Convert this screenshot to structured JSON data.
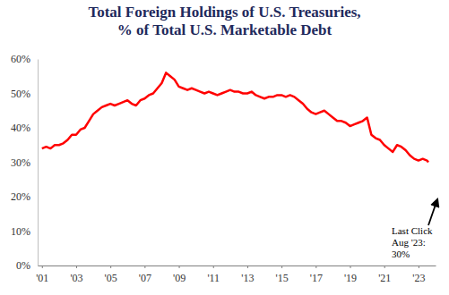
{
  "chart_data": {
    "type": "line",
    "title": [
      "Total Foreign Holdings of U.S. Treasuries,",
      "% of Total U.S. Marketable Debt"
    ],
    "x": [
      2001.0,
      2001.25,
      2001.5,
      2001.75,
      2002.0,
      2002.25,
      2002.5,
      2002.75,
      2003.0,
      2003.25,
      2003.5,
      2003.75,
      2004.0,
      2004.25,
      2004.5,
      2004.75,
      2005.0,
      2005.25,
      2005.5,
      2005.75,
      2006.0,
      2006.25,
      2006.5,
      2006.75,
      2007.0,
      2007.25,
      2007.5,
      2007.75,
      2008.0,
      2008.25,
      2008.5,
      2008.75,
      2009.0,
      2009.25,
      2009.5,
      2009.75,
      2010.0,
      2010.25,
      2010.5,
      2010.75,
      2011.0,
      2011.25,
      2011.5,
      2011.75,
      2012.0,
      2012.25,
      2012.5,
      2012.75,
      2013.0,
      2013.25,
      2013.5,
      2013.75,
      2014.0,
      2014.25,
      2014.5,
      2014.75,
      2015.0,
      2015.25,
      2015.5,
      2015.75,
      2016.0,
      2016.25,
      2016.5,
      2016.75,
      2017.0,
      2017.25,
      2017.5,
      2017.75,
      2018.0,
      2018.25,
      2018.5,
      2018.75,
      2019.0,
      2019.25,
      2019.5,
      2019.75,
      2020.0,
      2020.25,
      2020.5,
      2020.75,
      2021.0,
      2021.25,
      2021.5,
      2021.75,
      2022.0,
      2022.25,
      2022.5,
      2022.75,
      2023.0,
      2023.25,
      2023.5,
      2023.58
    ],
    "values": [
      34,
      34.5,
      34,
      35,
      35,
      35.5,
      36.5,
      38,
      38,
      39.5,
      40,
      42,
      44,
      45,
      46,
      46.5,
      47,
      46.5,
      47,
      47.5,
      48,
      47,
      46.5,
      48,
      48.5,
      49.5,
      50,
      51.5,
      53,
      56,
      55,
      54,
      52,
      51.5,
      51,
      51.5,
      51,
      50.5,
      50,
      50.5,
      50,
      49.5,
      50,
      50.5,
      51,
      50.5,
      50.5,
      50,
      50,
      50.5,
      49.5,
      49,
      48.5,
      49,
      49,
      49.5,
      49.5,
      49,
      49.5,
      49,
      48,
      47,
      45.5,
      44.5,
      44,
      44.5,
      45,
      44,
      43,
      42,
      42,
      41.5,
      40.5,
      41,
      41.5,
      42,
      43,
      38,
      37,
      36.5,
      35,
      34,
      33,
      35,
      34.5,
      33.5,
      32,
      31,
      30.5,
      31,
      30.5,
      30
    ],
    "color": "#ff0000",
    "xlim": [
      2000.75,
      2024
    ],
    "xticks": [
      {
        "value": 2001,
        "label": "'01"
      },
      {
        "value": 2003,
        "label": "'03"
      },
      {
        "value": 2005,
        "label": "'05"
      },
      {
        "value": 2007,
        "label": "'07"
      },
      {
        "value": 2009,
        "label": "'09"
      },
      {
        "value": 2011,
        "label": "'11"
      },
      {
        "value": 2013,
        "label": "'13"
      },
      {
        "value": 2015,
        "label": "'15"
      },
      {
        "value": 2017,
        "label": "'17"
      },
      {
        "value": 2019,
        "label": "'19"
      },
      {
        "value": 2021,
        "label": "'21"
      },
      {
        "value": 2023,
        "label": "'23"
      }
    ],
    "ylim": [
      0,
      60
    ],
    "yticks": [
      {
        "value": 0,
        "label": "0%"
      },
      {
        "value": 10,
        "label": "10%"
      },
      {
        "value": 20,
        "label": "20%"
      },
      {
        "value": 30,
        "label": "30%"
      },
      {
        "value": 40,
        "label": "40%"
      },
      {
        "value": 50,
        "label": "50%"
      },
      {
        "value": 60,
        "label": "60%"
      }
    ],
    "grid": false,
    "annotation": [
      "Last Click",
      "Aug '23:",
      "30%"
    ]
  }
}
